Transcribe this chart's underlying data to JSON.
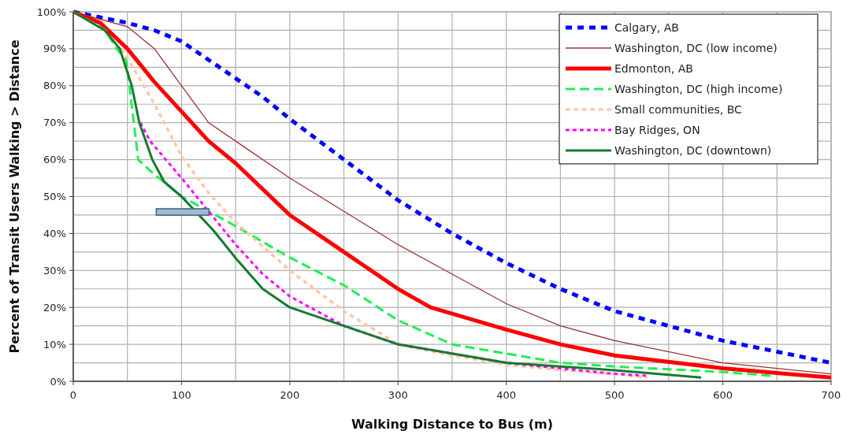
{
  "chart_data": {
    "type": "line",
    "xlabel": "Walking Distance to Bus (m)",
    "ylabel": "Percent of Transit Users Walking > Distance",
    "xlim": [
      0,
      700
    ],
    "ylim": [
      0,
      100
    ],
    "xticks": [
      0,
      {
        "value": 50,
        "label": null
      },
      100,
      {
        "value": 150,
        "label": null
      },
      200,
      {
        "value": 250,
        "label": null
      },
      300,
      {
        "value": 350,
        "label": null
      },
      400,
      {
        "value": 450,
        "label": null
      },
      500,
      {
        "value": 550,
        "label": null
      },
      600,
      {
        "value": 650,
        "label": null
      },
      700
    ],
    "yticks": [
      {
        "value": 0,
        "label": "0%"
      },
      {
        "value": 5,
        "label": null
      },
      {
        "value": 10,
        "label": "10%"
      },
      {
        "value": 15,
        "label": null
      },
      {
        "value": 20,
        "label": "20%"
      },
      {
        "value": 25,
        "label": null
      },
      {
        "value": 30,
        "label": "30%"
      },
      {
        "value": 35,
        "label": null
      },
      {
        "value": 40,
        "label": "40%"
      },
      {
        "value": 45,
        "label": null
      },
      {
        "value": 50,
        "label": "50%"
      },
      {
        "value": 55,
        "label": null
      },
      {
        "value": 60,
        "label": "60%"
      },
      {
        "value": 65,
        "label": null
      },
      {
        "value": 70,
        "label": "70%"
      },
      {
        "value": 75,
        "label": null
      },
      {
        "value": 80,
        "label": "80%"
      },
      {
        "value": 85,
        "label": null
      },
      {
        "value": 90,
        "label": "90%"
      },
      {
        "value": 95,
        "label": null
      },
      {
        "value": 100,
        "label": "100%"
      }
    ],
    "grid": true,
    "legend": "top right",
    "series": [
      {
        "name": "Calgary, AB",
        "color": "#0000ff",
        "line_style": "dotted",
        "x": [
          0,
          50,
          75,
          100,
          125,
          150,
          175,
          200,
          250,
          300,
          350,
          400,
          450,
          500,
          550,
          600,
          650,
          700
        ],
        "values": [
          100,
          97,
          95,
          92,
          87,
          82,
          77,
          71,
          60,
          49,
          40,
          32,
          25,
          19,
          15,
          11,
          8,
          5
        ]
      },
      {
        "name": "Washington, DC (low income)",
        "color": "#993333",
        "line_style": "solid",
        "x": [
          0,
          50,
          75,
          100,
          125,
          150,
          200,
          250,
          300,
          350,
          375,
          400,
          450,
          500,
          600,
          700
        ],
        "values": [
          100,
          96,
          90,
          80,
          70,
          65,
          55,
          46,
          37,
          29,
          25,
          21,
          15,
          11,
          5,
          2
        ]
      },
      {
        "name": "Edmonton, AB",
        "color": "#ff0000",
        "line_style": "solid",
        "x": [
          0,
          25,
          50,
          75,
          100,
          125,
          150,
          200,
          250,
          300,
          330,
          400,
          450,
          500,
          600,
          700
        ],
        "values": [
          100,
          97,
          90,
          81,
          73,
          65,
          59,
          45,
          35,
          25,
          20,
          14,
          10,
          7,
          3.5,
          1
        ]
      },
      {
        "name": "Washington, DC (high income)",
        "color": "#22ee55",
        "line_style": "dashed",
        "x": [
          0,
          30,
          40,
          49,
          60,
          71,
          100,
          125,
          150,
          200,
          250,
          300,
          350,
          400,
          450,
          500,
          600,
          645
        ],
        "values": [
          100,
          95,
          90,
          87,
          60,
          57,
          50,
          46,
          42,
          33.5,
          26,
          16.5,
          10,
          7.5,
          5,
          4,
          2.5,
          1.5
        ]
      },
      {
        "name": "Small communities, BC",
        "color": "#ffc8a8",
        "line_style": "dotted",
        "x": [
          45,
          75,
          100,
          125,
          150,
          200,
          250,
          300,
          350,
          400,
          450,
          500,
          530
        ],
        "values": [
          90,
          75,
          61,
          51,
          43,
          30,
          19,
          10,
          7,
          4.5,
          3,
          2,
          1
        ]
      },
      {
        "name": "Bay Ridges, ON",
        "color": "#ff00ff",
        "line_style": "dotted",
        "x": [
          62,
          71,
          100,
          125,
          150,
          175,
          200,
          250,
          300,
          400,
          450,
          500,
          530
        ],
        "values": [
          70,
          65,
          55,
          46,
          37,
          29,
          23,
          15,
          10,
          5,
          3.5,
          2,
          1.5
        ]
      },
      {
        "name": "Washington, DC (downtown)",
        "color": "#167a30",
        "line_style": "solid",
        "x": [
          0,
          29,
          43,
          54,
          61,
          73,
          84,
          100,
          129,
          151,
          175,
          200,
          300,
          400,
          450,
          500,
          580
        ],
        "values": [
          100,
          95,
          90,
          80,
          70,
          60,
          54,
          50,
          41,
          33,
          25,
          20,
          10,
          5,
          4,
          3,
          1
        ]
      }
    ]
  }
}
